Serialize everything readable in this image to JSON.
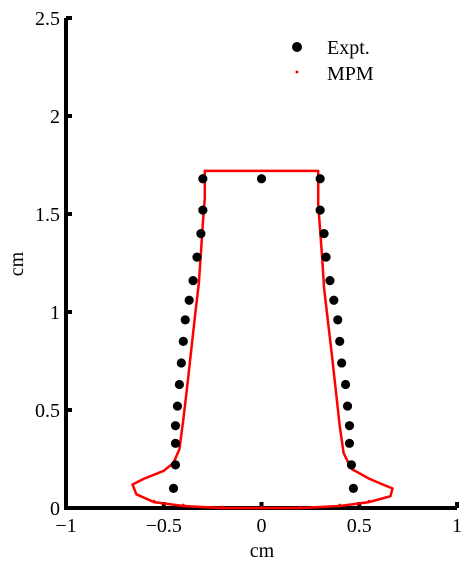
{
  "chart_data": {
    "type": "scatter",
    "title": "",
    "xlabel": "cm",
    "ylabel": "cm",
    "xlim": [
      -1,
      1
    ],
    "ylim": [
      0,
      2.5
    ],
    "xticks": [
      "−1",
      "−0.5",
      "0",
      "0.5",
      "1"
    ],
    "xtick_values": [
      -1,
      -0.5,
      0,
      0.5,
      1
    ],
    "yticks": [
      "0",
      "0.5",
      "1",
      "1.5",
      "2",
      "2.5"
    ],
    "ytick_values": [
      0,
      0.5,
      1,
      1.5,
      2,
      2.5
    ],
    "grid": false,
    "legend": "top-right",
    "series": [
      {
        "name": "Expt.",
        "marker": "filled-circle",
        "color": "#000000",
        "points": [
          [
            -0.3,
            1.68
          ],
          [
            0.0,
            1.68
          ],
          [
            0.3,
            1.68
          ],
          [
            -0.3,
            1.52
          ],
          [
            0.3,
            1.52
          ],
          [
            -0.31,
            1.4
          ],
          [
            0.32,
            1.4
          ],
          [
            -0.33,
            1.28
          ],
          [
            0.33,
            1.28
          ],
          [
            -0.35,
            1.16
          ],
          [
            0.35,
            1.16
          ],
          [
            -0.37,
            1.06
          ],
          [
            0.37,
            1.06
          ],
          [
            -0.39,
            0.96
          ],
          [
            0.39,
            0.96
          ],
          [
            -0.4,
            0.85
          ],
          [
            0.4,
            0.85
          ],
          [
            -0.41,
            0.74
          ],
          [
            0.41,
            0.74
          ],
          [
            -0.42,
            0.63
          ],
          [
            0.43,
            0.63
          ],
          [
            -0.43,
            0.52
          ],
          [
            0.44,
            0.52
          ],
          [
            -0.44,
            0.42
          ],
          [
            0.45,
            0.42
          ],
          [
            -0.44,
            0.33
          ],
          [
            0.45,
            0.33
          ],
          [
            -0.44,
            0.22
          ],
          [
            0.46,
            0.22
          ],
          [
            -0.45,
            0.1
          ],
          [
            0.47,
            0.1
          ]
        ]
      },
      {
        "name": "MPM",
        "marker": "dot",
        "color": "#ff0000",
        "outline": [
          [
            -0.29,
            1.72
          ],
          [
            0.29,
            1.72
          ],
          [
            0.29,
            1.55
          ],
          [
            0.3,
            1.42
          ],
          [
            0.31,
            1.28
          ],
          [
            0.32,
            1.12
          ],
          [
            0.34,
            0.95
          ],
          [
            0.36,
            0.78
          ],
          [
            0.38,
            0.6
          ],
          [
            0.4,
            0.42
          ],
          [
            0.42,
            0.28
          ],
          [
            0.46,
            0.2
          ],
          [
            0.55,
            0.15
          ],
          [
            0.62,
            0.12
          ],
          [
            0.67,
            0.1
          ],
          [
            0.66,
            0.06
          ],
          [
            0.55,
            0.03
          ],
          [
            0.4,
            0.01
          ],
          [
            0.2,
            0.0
          ],
          [
            0.0,
            0.0
          ],
          [
            -0.2,
            0.0
          ],
          [
            -0.4,
            0.01
          ],
          [
            -0.55,
            0.03
          ],
          [
            -0.64,
            0.07
          ],
          [
            -0.66,
            0.12
          ],
          [
            -0.6,
            0.15
          ],
          [
            -0.5,
            0.19
          ],
          [
            -0.45,
            0.23
          ],
          [
            -0.42,
            0.3
          ],
          [
            -0.4,
            0.45
          ],
          [
            -0.38,
            0.62
          ],
          [
            -0.36,
            0.8
          ],
          [
            -0.34,
            0.98
          ],
          [
            -0.32,
            1.15
          ],
          [
            -0.31,
            1.3
          ],
          [
            -0.3,
            1.45
          ],
          [
            -0.29,
            1.58
          ],
          [
            -0.29,
            1.72
          ]
        ]
      }
    ]
  }
}
